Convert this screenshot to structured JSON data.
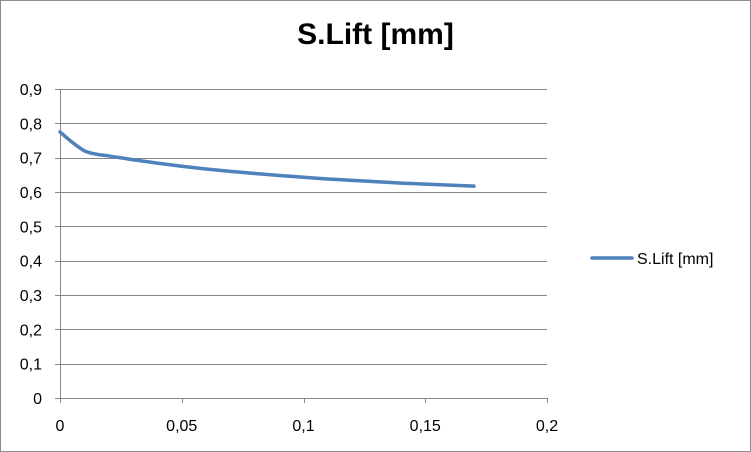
{
  "chart_data": {
    "type": "line",
    "title": "S.Lift [mm]",
    "xlabel": "",
    "ylabel": "",
    "xlim": [
      0,
      0.2
    ],
    "ylim": [
      0,
      0.9
    ],
    "x_ticks": [
      0,
      0.05,
      0.1,
      0.15,
      0.2
    ],
    "x_tick_labels": [
      "0",
      "0,05",
      "0,1",
      "0,15",
      "0,2"
    ],
    "y_ticks": [
      0,
      0.1,
      0.2,
      0.3,
      0.4,
      0.5,
      0.6,
      0.7,
      0.8,
      0.9
    ],
    "y_tick_labels": [
      "0",
      "0,1",
      "0,2",
      "0,3",
      "0,4",
      "0,5",
      "0,6",
      "0,7",
      "0,8",
      "0,9"
    ],
    "grid": "horizontal",
    "legend_position": "right",
    "series": [
      {
        "name": "S.Lift [mm]",
        "color": "#4f81bd",
        "x": [
          0,
          0.005,
          0.01,
          0.015,
          0.02,
          0.03,
          0.04,
          0.05,
          0.06,
          0.07,
          0.08,
          0.09,
          0.1,
          0.11,
          0.12,
          0.13,
          0.14,
          0.15,
          0.16,
          0.17
        ],
        "y": [
          0.775,
          0.745,
          0.72,
          0.71,
          0.705,
          0.694,
          0.684,
          0.675,
          0.667,
          0.66,
          0.654,
          0.648,
          0.643,
          0.638,
          0.634,
          0.63,
          0.626,
          0.623,
          0.62,
          0.617
        ]
      }
    ]
  }
}
